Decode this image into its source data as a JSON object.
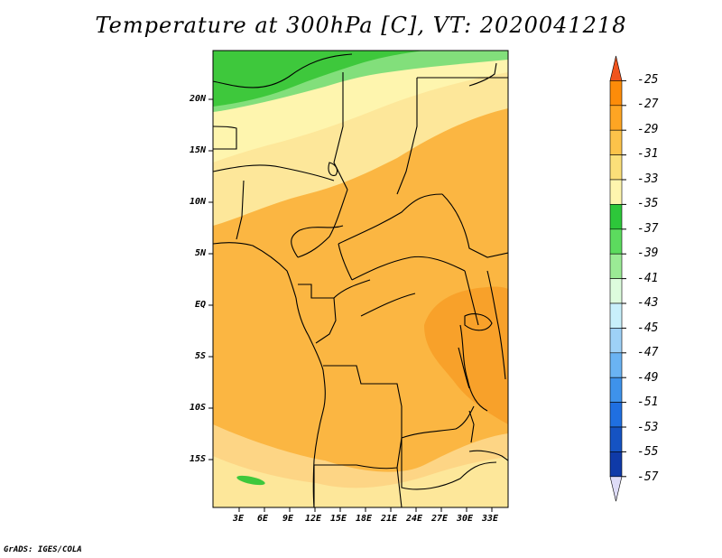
{
  "title": "Temperature at 300hPa [C], VT: 2020041218",
  "footer": "GrADS: IGES/COLA",
  "y_axis_labels": [
    "20N",
    "15N",
    "10N",
    "5N",
    "EQ",
    "5S",
    "10S",
    "15S"
  ],
  "x_axis_labels": [
    "3E",
    "6E",
    "9E",
    "12E",
    "15E",
    "18E",
    "21E",
    "24E",
    "27E",
    "30E",
    "33E"
  ],
  "colorbar": {
    "labels": [
      "-25",
      "-27",
      "-29",
      "-31",
      "-33",
      "-35",
      "-37",
      "-39",
      "-41",
      "-43",
      "-45",
      "-47",
      "-49",
      "-51",
      "-53",
      "-55",
      "-57"
    ],
    "colors": [
      "#f0541e",
      "#fd8c09",
      "#fea523",
      "#fcc34a",
      "#fbdf79",
      "#fef5ae",
      "#2dc73a",
      "#5cdb5e",
      "#9beb95",
      "#ddfcdd",
      "#c8f0fb",
      "#9ed1f7",
      "#6ab3f3",
      "#3e92eb",
      "#1f6fe1",
      "#1553c3",
      "#0f3aa8",
      "#0a1e78"
    ]
  },
  "shading": {
    "west_coast_band": "#fdd585",
    "interior": "#fbb642",
    "east_warm": "#f8a12a",
    "northern": "#fde79a",
    "north_green": "#3ec83c",
    "north_light_green": "#82df7b"
  }
}
